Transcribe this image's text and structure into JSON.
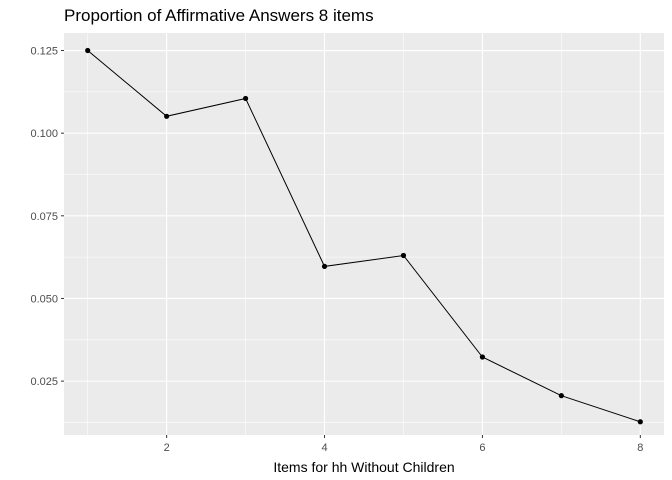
{
  "chart_data": {
    "type": "line",
    "title": "Proportion of Affirmative Answers 8 items",
    "xlabel": "Items for hh Without Children",
    "ylabel": "",
    "x": [
      1,
      2,
      3,
      4,
      5,
      6,
      7,
      8
    ],
    "series": [
      {
        "values": [
          0.125,
          0.1051,
          0.1105,
          0.0597,
          0.063,
          0.0323,
          0.0206,
          0.0127
        ]
      }
    ],
    "xlim": [
      0.7,
      8.3
    ],
    "ylim": [
      0.0087,
      0.1303
    ],
    "xticks": [
      2,
      4,
      6,
      8
    ],
    "xtick_labels": [
      "2",
      "4",
      "6",
      "8"
    ],
    "yticks": [
      0.025,
      0.05,
      0.075,
      0.1,
      0.125
    ],
    "ytick_labels": [
      "0.025",
      "0.050",
      "0.075",
      "0.100",
      "0.125"
    ],
    "grid": true,
    "legend": "none",
    "colors": {
      "panel": "#ebebeb",
      "grid": "#ffffff",
      "line": "#000000",
      "point": "#000000",
      "tick_text": "#4d4d4d"
    }
  }
}
